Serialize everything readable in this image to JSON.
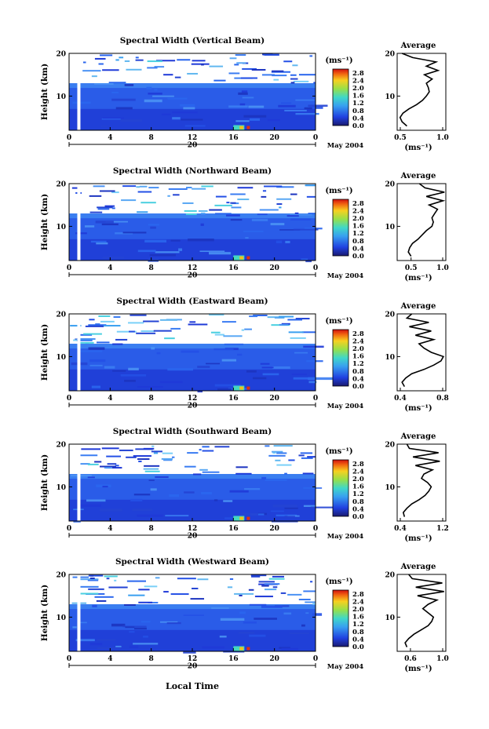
{
  "figure": {
    "xlabel": "Local Time",
    "date_label": "May 2004",
    "day_label": "20",
    "colorbar_unit": "(ms⁻¹)",
    "colorbar_ticks": [
      "2.8",
      "2.4",
      "2.0",
      "1.6",
      "1.2",
      "0.8",
      "0.4",
      "0.0"
    ],
    "ylabel": "Height (km)",
    "profile_title": "Average",
    "profile_xunit": "(ms⁻¹)"
  },
  "chart_data": [
    {
      "type": "heatmap",
      "title": "Spectral Width (Vertical Beam)",
      "ylabel": "Height (km)",
      "x_ticks": [
        "0",
        "4",
        "8",
        "12",
        "16",
        "20",
        "0"
      ],
      "y_ticks": [
        "20",
        "10"
      ],
      "xlim": [
        0,
        24
      ],
      "ylim": [
        2,
        20
      ],
      "colorbar": {
        "range": [
          0.0,
          3.0
        ],
        "ticks": [
          0.0,
          0.4,
          0.8,
          1.2,
          1.6,
          2.0,
          2.4,
          2.8
        ]
      },
      "profile": {
        "title": "Average",
        "xlim": [
          0.5,
          1.0
        ],
        "x_ticks": [
          "0.5",
          "1.0"
        ],
        "y_ticks": [
          "20",
          "10"
        ],
        "heights": [
          3,
          4,
          5,
          6,
          7,
          8,
          9,
          10,
          11,
          12,
          13,
          14,
          15,
          16,
          17,
          18,
          19,
          20
        ],
        "values": [
          0.6,
          0.55,
          0.53,
          0.56,
          0.62,
          0.7,
          0.76,
          0.8,
          0.83,
          0.82,
          0.8,
          0.86,
          0.78,
          0.92,
          0.8,
          0.9,
          0.66,
          0.55
        ]
      }
    },
    {
      "type": "heatmap",
      "title": "Spectral Width (Northward Beam)",
      "ylabel": "Height (km)",
      "x_ticks": [
        "0",
        "4",
        "8",
        "12",
        "16",
        "20",
        "0"
      ],
      "y_ticks": [
        "20",
        "10"
      ],
      "xlim": [
        0,
        24
      ],
      "ylim": [
        2,
        20
      ],
      "colorbar": {
        "range": [
          0.0,
          3.0
        ],
        "ticks": [
          0.0,
          0.4,
          0.8,
          1.2,
          1.6,
          2.0,
          2.4,
          2.8
        ]
      },
      "profile": {
        "title": "Average",
        "xlim": [
          0.3,
          1.0
        ],
        "x_ticks": [
          "0.5",
          "1.0"
        ],
        "y_ticks": [
          "20",
          "10"
        ],
        "heights": [
          3,
          4,
          5,
          6,
          7,
          8,
          9,
          10,
          11,
          12,
          13,
          14,
          15,
          16,
          17,
          18,
          19,
          20
        ],
        "values": [
          0.5,
          0.46,
          0.48,
          0.52,
          0.6,
          0.66,
          0.72,
          0.8,
          0.82,
          0.8,
          0.84,
          0.88,
          0.76,
          0.96,
          0.72,
          0.98,
          0.7,
          0.62
        ]
      }
    },
    {
      "type": "heatmap",
      "title": "Spectral Width (Eastward Beam)",
      "ylabel": "Height (km)",
      "x_ticks": [
        "0",
        "4",
        "8",
        "12",
        "16",
        "20",
        "0"
      ],
      "y_ticks": [
        "20",
        "10"
      ],
      "xlim": [
        0,
        24
      ],
      "ylim": [
        2,
        20
      ],
      "colorbar": {
        "range": [
          0.0,
          3.0
        ],
        "ticks": [
          0.0,
          0.4,
          0.8,
          1.2,
          1.6,
          2.0,
          2.4,
          2.8
        ]
      },
      "profile": {
        "title": "Average",
        "xlim": [
          0.4,
          0.8
        ],
        "x_ticks": [
          "0.4",
          "0.8"
        ],
        "y_ticks": [
          "20",
          "10"
        ],
        "heights": [
          3,
          4,
          5,
          6,
          7,
          8,
          9,
          10,
          11,
          12,
          13,
          14,
          15,
          16,
          17,
          18,
          19,
          20
        ],
        "values": [
          0.46,
          0.44,
          0.47,
          0.52,
          0.62,
          0.7,
          0.76,
          0.78,
          0.68,
          0.62,
          0.58,
          0.7,
          0.55,
          0.68,
          0.5,
          0.66,
          0.48,
          0.52
        ]
      }
    },
    {
      "type": "heatmap",
      "title": "Spectral Width (Southward Beam)",
      "ylabel": "Height (km)",
      "x_ticks": [
        "0",
        "4",
        "8",
        "12",
        "16",
        "20",
        "0"
      ],
      "y_ticks": [
        "20",
        "10"
      ],
      "xlim": [
        0,
        24
      ],
      "ylim": [
        2,
        20
      ],
      "colorbar": {
        "range": [
          0.0,
          3.0
        ],
        "ticks": [
          0.0,
          0.4,
          0.8,
          1.2,
          1.6,
          2.0,
          2.4,
          2.8
        ]
      },
      "profile": {
        "title": "Average",
        "xlim": [
          0.4,
          1.2
        ],
        "x_ticks": [
          "0.4",
          "1.2"
        ],
        "y_ticks": [
          "20",
          "10"
        ],
        "heights": [
          3,
          4,
          5,
          6,
          7,
          8,
          9,
          10,
          11,
          12,
          13,
          14,
          15,
          16,
          17,
          18,
          19,
          20
        ],
        "values": [
          0.52,
          0.5,
          0.56,
          0.64,
          0.76,
          0.86,
          0.92,
          0.96,
          0.9,
          0.8,
          0.84,
          0.98,
          0.7,
          1.1,
          0.66,
          1.08,
          0.6,
          0.56
        ]
      }
    },
    {
      "type": "heatmap",
      "title": "Spectral Width (Westward Beam)",
      "ylabel": "Height (km)",
      "x_ticks": [
        "0",
        "4",
        "8",
        "12",
        "16",
        "20",
        "0"
      ],
      "y_ticks": [
        "20",
        "10"
      ],
      "xlim": [
        0,
        24
      ],
      "ylim": [
        2,
        20
      ],
      "colorbar": {
        "range": [
          0.0,
          3.0
        ],
        "ticks": [
          0.0,
          0.4,
          0.8,
          1.2,
          1.6,
          2.0,
          2.4,
          2.8
        ]
      },
      "profile": {
        "title": "Average",
        "xlim": [
          0.45,
          1.0
        ],
        "x_ticks": [
          "0.6",
          "1.0"
        ],
        "y_ticks": [
          "20",
          "10"
        ],
        "heights": [
          3,
          4,
          5,
          6,
          7,
          8,
          9,
          10,
          11,
          12,
          13,
          14,
          15,
          16,
          17,
          18,
          19,
          20
        ],
        "values": [
          0.56,
          0.54,
          0.58,
          0.64,
          0.72,
          0.8,
          0.84,
          0.86,
          0.8,
          0.74,
          0.8,
          0.9,
          0.68,
          0.98,
          0.66,
          0.96,
          0.62,
          0.58
        ]
      }
    }
  ]
}
